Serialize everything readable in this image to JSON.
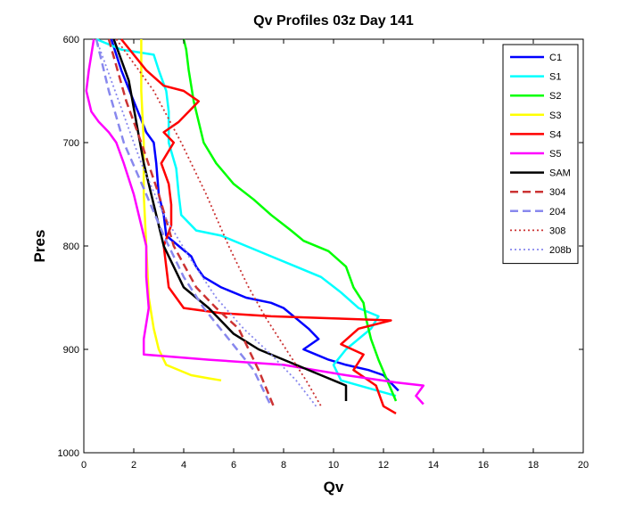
{
  "chart_data": {
    "type": "line",
    "title": "Qv Profiles 03z Day 141",
    "xlabel": "Qv",
    "ylabel": "Pres",
    "xlim": [
      0,
      20
    ],
    "ylim": [
      600,
      1000
    ],
    "y_reversed": true,
    "xticks": [
      0,
      2,
      4,
      6,
      8,
      10,
      12,
      14,
      16,
      18,
      20
    ],
    "yticks": [
      600,
      700,
      800,
      900,
      1000
    ],
    "grid": false,
    "legend_position": "top-right",
    "series": [
      {
        "name": "C1",
        "color": "#0000ff",
        "style": "solid",
        "width": 2.5,
        "points": [
          [
            1.1,
            600
          ],
          [
            1.5,
            630
          ],
          [
            2.0,
            660
          ],
          [
            2.5,
            690
          ],
          [
            2.8,
            700
          ],
          [
            2.9,
            720
          ],
          [
            3.0,
            750
          ],
          [
            3.2,
            770
          ],
          [
            3.3,
            790
          ],
          [
            3.8,
            800
          ],
          [
            4.3,
            810
          ],
          [
            4.5,
            820
          ],
          [
            4.8,
            830
          ],
          [
            5.5,
            840
          ],
          [
            6.5,
            850
          ],
          [
            7.5,
            855
          ],
          [
            8.0,
            860
          ],
          [
            8.5,
            870
          ],
          [
            9.0,
            880
          ],
          [
            9.4,
            890
          ],
          [
            8.8,
            900
          ],
          [
            9.3,
            905
          ],
          [
            9.8,
            910
          ],
          [
            10.5,
            915
          ],
          [
            11.4,
            920
          ],
          [
            12.0,
            925
          ],
          [
            12.6,
            940
          ]
        ]
      },
      {
        "name": "S1",
        "color": "#00ffff",
        "style": "solid",
        "width": 2.5,
        "points": [
          [
            0.5,
            600
          ],
          [
            1.5,
            610
          ],
          [
            2.8,
            615
          ],
          [
            3.0,
            630
          ],
          [
            3.3,
            650
          ],
          [
            3.4,
            670
          ],
          [
            3.4,
            700
          ],
          [
            3.7,
            725
          ],
          [
            3.8,
            750
          ],
          [
            3.9,
            770
          ],
          [
            4.5,
            785
          ],
          [
            5.5,
            790
          ],
          [
            6.5,
            800
          ],
          [
            7.5,
            810
          ],
          [
            8.5,
            820
          ],
          [
            9.5,
            830
          ],
          [
            10.3,
            845
          ],
          [
            11.0,
            860
          ],
          [
            11.8,
            868
          ],
          [
            11.5,
            880
          ],
          [
            11.0,
            890
          ],
          [
            10.5,
            900
          ],
          [
            10.0,
            915
          ],
          [
            10.3,
            930
          ],
          [
            12.5,
            945
          ]
        ]
      },
      {
        "name": "S2",
        "color": "#00ff00",
        "style": "solid",
        "width": 2.5,
        "points": [
          [
            4.0,
            600
          ],
          [
            4.1,
            610
          ],
          [
            4.2,
            630
          ],
          [
            4.4,
            660
          ],
          [
            4.6,
            680
          ],
          [
            4.8,
            700
          ],
          [
            5.3,
            720
          ],
          [
            6.0,
            740
          ],
          [
            6.8,
            755
          ],
          [
            7.5,
            770
          ],
          [
            8.3,
            785
          ],
          [
            8.8,
            795
          ],
          [
            9.8,
            805
          ],
          [
            10.5,
            820
          ],
          [
            10.8,
            840
          ],
          [
            11.2,
            855
          ],
          [
            11.3,
            870
          ],
          [
            11.5,
            890
          ],
          [
            11.8,
            910
          ],
          [
            12.5,
            950
          ]
        ]
      },
      {
        "name": "S3",
        "color": "#ffff00",
        "style": "solid",
        "width": 2.5,
        "points": [
          [
            2.3,
            600
          ],
          [
            2.3,
            650
          ],
          [
            2.4,
            700
          ],
          [
            2.4,
            750
          ],
          [
            2.5,
            800
          ],
          [
            2.6,
            850
          ],
          [
            2.8,
            880
          ],
          [
            3.0,
            900
          ],
          [
            3.3,
            915
          ],
          [
            4.3,
            925
          ],
          [
            5.0,
            928
          ],
          [
            5.5,
            930
          ]
        ]
      },
      {
        "name": "S4",
        "color": "#ff0000",
        "style": "solid",
        "width": 2.5,
        "points": [
          [
            1.5,
            600
          ],
          [
            2.5,
            630
          ],
          [
            3.2,
            645
          ],
          [
            4.0,
            650
          ],
          [
            4.6,
            660
          ],
          [
            4.2,
            670
          ],
          [
            3.8,
            680
          ],
          [
            3.2,
            690
          ],
          [
            3.6,
            700
          ],
          [
            3.1,
            720
          ],
          [
            3.4,
            740
          ],
          [
            3.5,
            760
          ],
          [
            3.5,
            780
          ],
          [
            3.2,
            800
          ],
          [
            3.3,
            820
          ],
          [
            3.4,
            840
          ],
          [
            4.0,
            860
          ],
          [
            5.5,
            865
          ],
          [
            7.5,
            868
          ],
          [
            10.0,
            870
          ],
          [
            12.3,
            872
          ],
          [
            11.0,
            880
          ],
          [
            10.3,
            895
          ],
          [
            11.2,
            905
          ],
          [
            10.8,
            920
          ],
          [
            11.7,
            935
          ],
          [
            12.0,
            955
          ],
          [
            12.5,
            962
          ]
        ]
      },
      {
        "name": "S5",
        "color": "#ff00ff",
        "style": "solid",
        "width": 2.5,
        "points": [
          [
            0.4,
            600
          ],
          [
            0.2,
            630
          ],
          [
            0.1,
            650
          ],
          [
            0.3,
            670
          ],
          [
            0.6,
            680
          ],
          [
            1.0,
            690
          ],
          [
            1.3,
            700
          ],
          [
            1.6,
            720
          ],
          [
            2.0,
            750
          ],
          [
            2.3,
            780
          ],
          [
            2.5,
            800
          ],
          [
            2.5,
            830
          ],
          [
            2.6,
            860
          ],
          [
            2.4,
            890
          ],
          [
            2.4,
            905
          ],
          [
            5.0,
            910
          ],
          [
            8.0,
            915
          ],
          [
            10.5,
            925
          ],
          [
            12.5,
            932
          ],
          [
            13.6,
            935
          ],
          [
            13.3,
            945
          ],
          [
            13.6,
            953
          ]
        ]
      },
      {
        "name": "SAM",
        "color": "#000000",
        "style": "solid",
        "width": 2.5,
        "points": [
          [
            1.2,
            600
          ],
          [
            1.8,
            640
          ],
          [
            2.1,
            680
          ],
          [
            2.4,
            720
          ],
          [
            2.8,
            760
          ],
          [
            3.2,
            800
          ],
          [
            4.0,
            840
          ],
          [
            5.0,
            860
          ],
          [
            6.0,
            885
          ],
          [
            7.0,
            900
          ],
          [
            8.5,
            915
          ],
          [
            9.5,
            925
          ],
          [
            10.5,
            935
          ],
          [
            10.5,
            950
          ]
        ]
      },
      {
        "name": "304",
        "color": "#cc3333",
        "style": "dashed",
        "width": 2.5,
        "points": [
          [
            1.0,
            600
          ],
          [
            1.7,
            660
          ],
          [
            2.3,
            700
          ],
          [
            3.0,
            750
          ],
          [
            3.6,
            800
          ],
          [
            4.5,
            840
          ],
          [
            5.3,
            860
          ],
          [
            6.2,
            880
          ],
          [
            7.0,
            920
          ],
          [
            7.6,
            955
          ]
        ]
      },
      {
        "name": "204",
        "color": "#8888ee",
        "style": "dashed",
        "width": 2.5,
        "points": [
          [
            0.5,
            600
          ],
          [
            1.0,
            650
          ],
          [
            1.6,
            700
          ],
          [
            2.5,
            750
          ],
          [
            3.2,
            790
          ],
          [
            4.0,
            830
          ],
          [
            4.8,
            860
          ],
          [
            5.8,
            890
          ],
          [
            6.8,
            920
          ],
          [
            7.5,
            955
          ]
        ]
      },
      {
        "name": "308",
        "color": "#cc3333",
        "style": "dotted",
        "width": 1.8,
        "points": [
          [
            1.3,
            600
          ],
          [
            2.8,
            650
          ],
          [
            3.9,
            700
          ],
          [
            4.9,
            750
          ],
          [
            5.8,
            800
          ],
          [
            6.6,
            840
          ],
          [
            7.3,
            870
          ],
          [
            8.1,
            900
          ],
          [
            8.9,
            930
          ],
          [
            9.5,
            955
          ]
        ]
      },
      {
        "name": "208b",
        "color": "#8888ee",
        "style": "dotted",
        "width": 1.8,
        "points": [
          [
            0.5,
            600
          ],
          [
            1.1,
            640
          ],
          [
            1.7,
            680
          ],
          [
            2.3,
            720
          ],
          [
            3.2,
            770
          ],
          [
            4.2,
            810
          ],
          [
            5.3,
            850
          ],
          [
            6.4,
            880
          ],
          [
            7.5,
            905
          ],
          [
            8.5,
            930
          ],
          [
            9.3,
            955
          ]
        ]
      }
    ]
  }
}
